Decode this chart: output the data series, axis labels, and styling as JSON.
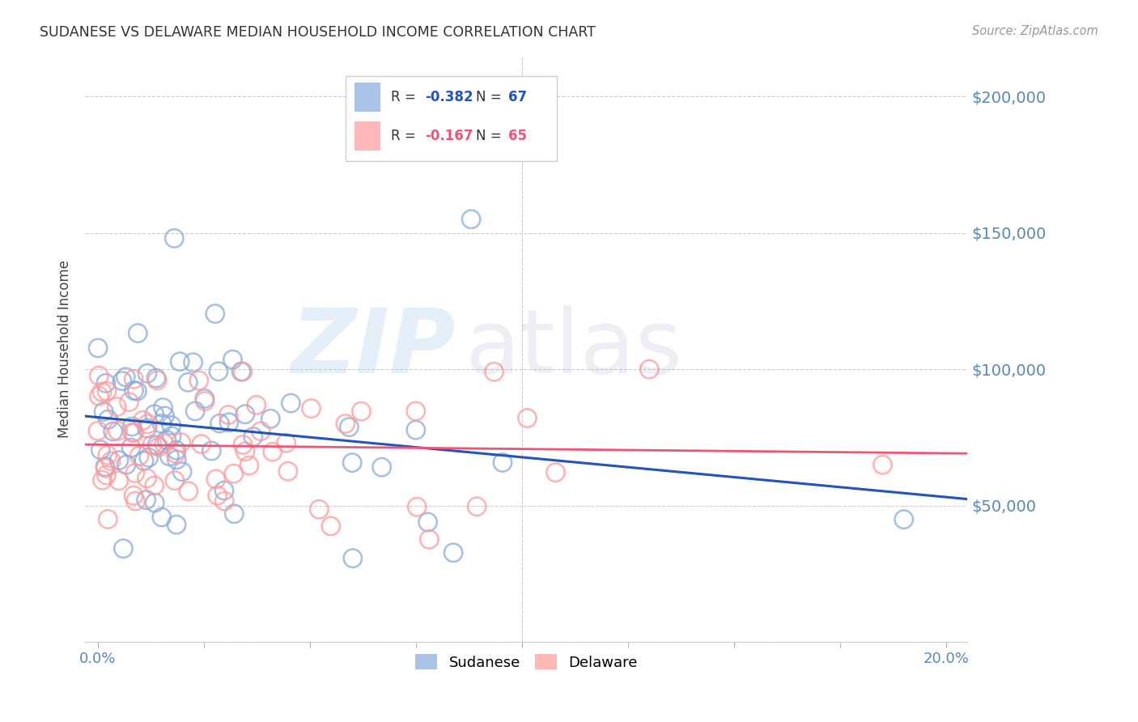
{
  "title": "SUDANESE VS DELAWARE MEDIAN HOUSEHOLD INCOME CORRELATION CHART",
  "source": "Source: ZipAtlas.com",
  "ylabel": "Median Household Income",
  "yticks": [
    0,
    50000,
    100000,
    150000,
    200000
  ],
  "ytick_labels": [
    "",
    "$50,000",
    "$100,000",
    "$150,000",
    "$200,000"
  ],
  "ylim": [
    0,
    215000
  ],
  "xlim": [
    -0.003,
    0.205
  ],
  "xticks_major": [
    0.0,
    0.05,
    0.1,
    0.15,
    0.2
  ],
  "xtick_show_labels": [
    0.0,
    0.2
  ],
  "blue_R": "-0.382",
  "blue_N": "67",
  "pink_R": "-0.167",
  "pink_N": "65",
  "blue_scatter_color": "#88AADD",
  "pink_scatter_color": "#FF9999",
  "blue_line_color": "#2255BB",
  "pink_line_color": "#EE5577",
  "axis_tick_color": "#5588BB",
  "title_color": "#333333",
  "grid_color": "#CCCCCC",
  "background_color": "#FFFFFF",
  "legend_edge_color": "#CCCCCC",
  "watermark_zip_color": "#AACCEE",
  "watermark_atlas_color": "#AAAACC"
}
